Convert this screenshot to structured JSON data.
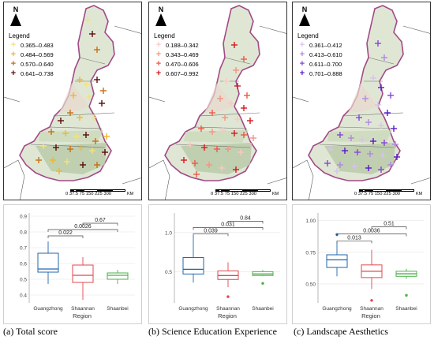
{
  "panels": [
    {
      "id": "a",
      "legend_title": "Legend",
      "legend_items": [
        {
          "label": "0.365–0.483",
          "color": "#f6e27a"
        },
        {
          "label": "0.484–0.569",
          "color": "#f0b62d"
        },
        {
          "label": "0.570–0.640",
          "color": "#c8700f"
        },
        {
          "label": "0.641–0.738",
          "color": "#5c0b0b"
        }
      ],
      "boxplot": {
        "y_ticks": [
          "0.4",
          "0.5",
          "0.6",
          "0.7",
          "0.8",
          "0.9"
        ],
        "ylim": [
          0.35,
          0.92
        ],
        "categories": [
          "Guangzhong",
          "Shaannan",
          "Shaanbei"
        ],
        "colors": [
          "#2166ac",
          "#e0474c",
          "#4daf4a"
        ],
        "boxes": [
          {
            "whisker_low": 0.47,
            "q1": 0.545,
            "median": 0.565,
            "q3": 0.665,
            "whisker_high": 0.74,
            "outliers": []
          },
          {
            "whisker_low": 0.37,
            "q1": 0.48,
            "median": 0.525,
            "q3": 0.59,
            "whisker_high": 0.64,
            "outliers": []
          },
          {
            "whisker_low": 0.47,
            "q1": 0.5,
            "median": 0.525,
            "q3": 0.54,
            "whisker_high": 0.56,
            "outliers": []
          }
        ],
        "brackets": [
          {
            "label": "0.022",
            "from": 0,
            "to": 1,
            "y": 0.775
          },
          {
            "label": "0.0026",
            "from": 0,
            "to": 2,
            "y": 0.815
          },
          {
            "label": "0.67",
            "from": 1,
            "to": 2,
            "y": 0.855
          }
        ],
        "xlabel": "Region"
      },
      "caption": "(a) Total score"
    },
    {
      "id": "b",
      "legend_title": "Legend",
      "legend_items": [
        {
          "label": "0.188–0.342",
          "color": "#f9c9c0"
        },
        {
          "label": "0.343–0.469",
          "color": "#f59480"
        },
        {
          "label": "0.470–0.606",
          "color": "#ee5a45"
        },
        {
          "label": "0.607–0.992",
          "color": "#d7191c"
        }
      ],
      "boxplot": {
        "y_ticks": [
          "0.5",
          "1.0"
        ],
        "ylim": [
          0.1,
          1.25
        ],
        "categories": [
          "Guangzhong",
          "Shaannan",
          "Shaanbei"
        ],
        "colors": [
          "#2166ac",
          "#e0474c",
          "#4daf4a"
        ],
        "boxes": [
          {
            "whisker_low": 0.36,
            "q1": 0.47,
            "median": 0.53,
            "q3": 0.68,
            "whisker_high": 0.96,
            "outliers": []
          },
          {
            "whisker_low": 0.3,
            "q1": 0.4,
            "median": 0.45,
            "q3": 0.51,
            "whisker_high": 0.62,
            "outliers": [
              0.18
            ]
          },
          {
            "whisker_low": 0.44,
            "q1": 0.45,
            "median": 0.47,
            "q3": 0.5,
            "whisker_high": 0.52,
            "outliers": [
              0.35
            ]
          }
        ],
        "brackets": [
          {
            "label": "0.039",
            "from": 0,
            "to": 1,
            "y": 0.985
          },
          {
            "label": "0.031",
            "from": 0,
            "to": 2,
            "y": 1.065
          },
          {
            "label": "0.84",
            "from": 1,
            "to": 2,
            "y": 1.145
          }
        ],
        "xlabel": "Region"
      },
      "caption": "(b) Science Education Experience"
    },
    {
      "id": "c",
      "legend_title": "Legend",
      "legend_items": [
        {
          "label": "0.361–0.412",
          "color": "#d8c3ec"
        },
        {
          "label": "0.413–0.610",
          "color": "#b088e0"
        },
        {
          "label": "0.611–0.700",
          "color": "#8447d6"
        },
        {
          "label": "0.701–0.888",
          "color": "#5a18c9"
        }
      ],
      "boxplot": {
        "y_ticks": [
          "0.50",
          "0.75",
          "1.00"
        ],
        "ylim": [
          0.35,
          1.06
        ],
        "categories": [
          "Guangzhong",
          "Shaannan",
          "Shaanbei"
        ],
        "colors": [
          "#2166ac",
          "#e0474c",
          "#4daf4a"
        ],
        "boxes": [
          {
            "whisker_low": 0.56,
            "q1": 0.63,
            "median": 0.69,
            "q3": 0.73,
            "whisker_high": 0.83,
            "outliers": [
              0.89
            ]
          },
          {
            "whisker_low": 0.46,
            "q1": 0.55,
            "median": 0.6,
            "q3": 0.65,
            "whisker_high": 0.77,
            "outliers": [
              0.37
            ]
          },
          {
            "whisker_low": 0.54,
            "q1": 0.56,
            "median": 0.58,
            "q3": 0.6,
            "whisker_high": 0.62,
            "outliers": [
              0.41
            ]
          }
        ],
        "brackets": [
          {
            "label": "0.013",
            "from": 0,
            "to": 1,
            "y": 0.84
          },
          {
            "label": "0.0036",
            "from": 0,
            "to": 2,
            "y": 0.895
          },
          {
            "label": "0.51",
            "from": 1,
            "to": 2,
            "y": 0.95
          }
        ],
        "xlabel": "Region"
      },
      "caption": "(c) Landscape Aesthetics"
    }
  ],
  "map_common": {
    "north_label": "N",
    "scale_labels": "0 37.5 75     150    225    300",
    "scale_unit": "KM"
  },
  "chart_data": [
    {
      "type": "box",
      "title": "",
      "xlabel": "Region",
      "ylabel": "",
      "categories": [
        "Guangzhong",
        "Shaannan",
        "Shaanbei"
      ],
      "ylim": [
        0.35,
        0.92
      ],
      "series": [
        {
          "values": [
            [
              0.47,
              0.545,
              0.565,
              0.665,
              0.74
            ],
            [
              0.37,
              0.48,
              0.525,
              0.59,
              0.64
            ],
            [
              0.47,
              0.5,
              0.525,
              0.54,
              0.56
            ]
          ]
        }
      ],
      "annotations": [
        "0.022",
        "0.0026",
        "0.67"
      ]
    },
    {
      "type": "box",
      "title": "",
      "xlabel": "Region",
      "ylabel": "",
      "categories": [
        "Guangzhong",
        "Shaannan",
        "Shaanbei"
      ],
      "ylim": [
        0.1,
        1.25
      ],
      "series": [
        {
          "values": [
            [
              0.36,
              0.47,
              0.53,
              0.68,
              0.96
            ],
            [
              0.3,
              0.4,
              0.45,
              0.51,
              0.62
            ],
            [
              0.44,
              0.45,
              0.47,
              0.5,
              0.52
            ]
          ]
        }
      ],
      "annotations": [
        "0.039",
        "0.031",
        "0.84"
      ]
    },
    {
      "type": "box",
      "title": "",
      "xlabel": "Region",
      "ylabel": "",
      "categories": [
        "Guangzhong",
        "Shaannan",
        "Shaanbei"
      ],
      "ylim": [
        0.35,
        1.06
      ],
      "series": [
        {
          "values": [
            [
              0.56,
              0.63,
              0.69,
              0.73,
              0.83
            ],
            [
              0.46,
              0.55,
              0.6,
              0.65,
              0.77
            ],
            [
              0.54,
              0.56,
              0.58,
              0.6,
              0.62
            ]
          ]
        }
      ],
      "annotations": [
        "0.013",
        "0.0036",
        "0.51"
      ]
    }
  ]
}
